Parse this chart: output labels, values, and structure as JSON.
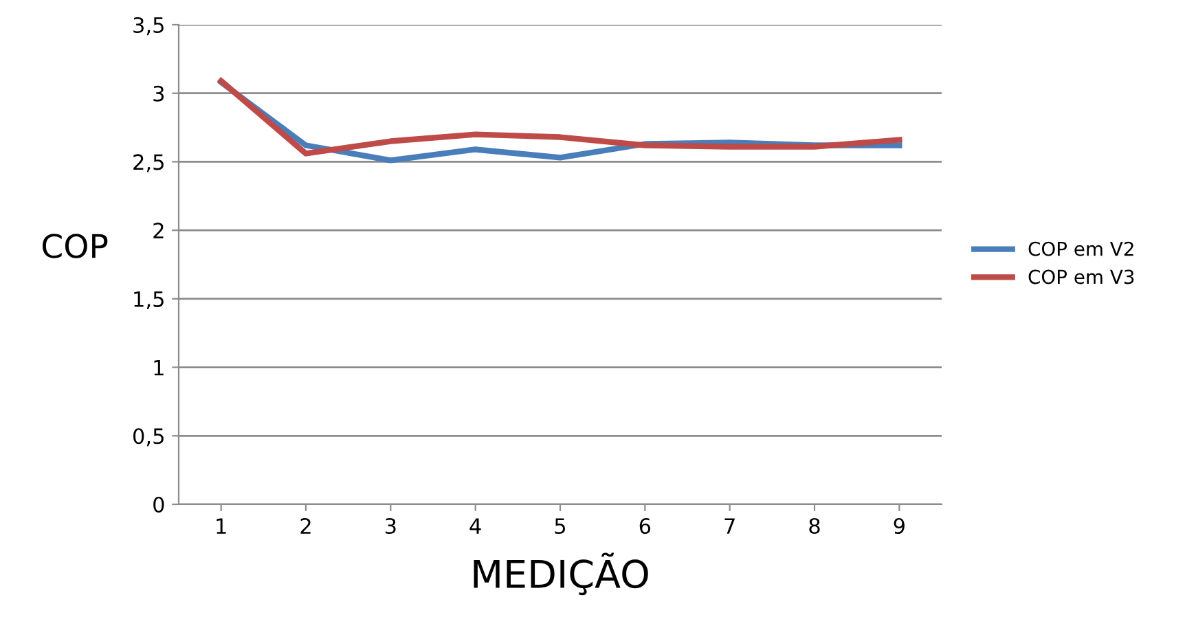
{
  "chart_data": {
    "type": "line",
    "xlabel": "MEDIÇÃO",
    "ylabel": "COP",
    "categories": [
      "1",
      "2",
      "3",
      "4",
      "5",
      "6",
      "7",
      "8",
      "9"
    ],
    "series": [
      {
        "name": "COP em V2",
        "color": "#4a7ebb",
        "values": [
          3.08,
          2.62,
          2.51,
          2.59,
          2.53,
          2.63,
          2.64,
          2.62,
          2.62
        ]
      },
      {
        "name": "COP em V3",
        "color": "#be4b48",
        "values": [
          3.09,
          2.56,
          2.65,
          2.7,
          2.68,
          2.62,
          2.61,
          2.61,
          2.66
        ]
      }
    ],
    "ylim": [
      0,
      3.5
    ],
    "yticks": [
      {
        "value": 0,
        "label": "0"
      },
      {
        "value": 0.5,
        "label": "0,5"
      },
      {
        "value": 1,
        "label": "1"
      },
      {
        "value": 1.5,
        "label": "1,5"
      },
      {
        "value": 2,
        "label": "2"
      },
      {
        "value": 2.5,
        "label": "2,5"
      },
      {
        "value": 3,
        "label": "3"
      },
      {
        "value": 3.5,
        "label": "3,5"
      }
    ],
    "grid": "y",
    "legend": "right",
    "marker": "none",
    "line_style": "solid"
  }
}
